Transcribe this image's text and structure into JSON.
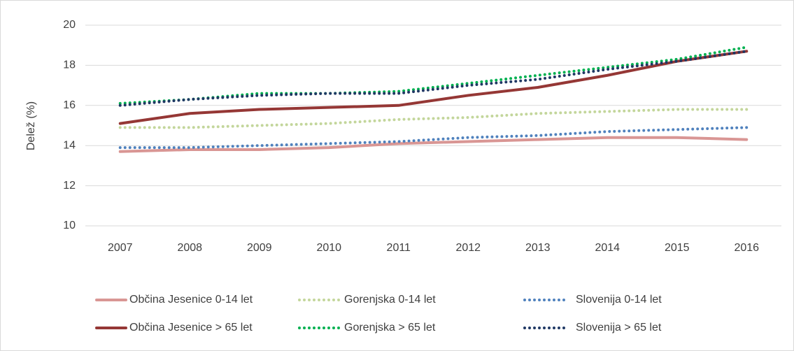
{
  "chart_data": {
    "type": "line",
    "y_label": "Delež (%)",
    "categories": [
      "2007",
      "2008",
      "2009",
      "2010",
      "2011",
      "2012",
      "2013",
      "2014",
      "2015",
      "2016"
    ],
    "series": [
      {
        "name": "Občina Jesenice 0-14 let",
        "color": "#d99694",
        "style": "solid",
        "values": [
          13.7,
          13.8,
          13.8,
          13.9,
          14.1,
          14.2,
          14.3,
          14.4,
          14.4,
          14.3
        ]
      },
      {
        "name": "Gorenjska 0-14 let",
        "color": "#c3d69b",
        "style": "dotted",
        "values": [
          14.9,
          14.9,
          15.0,
          15.1,
          15.3,
          15.4,
          15.6,
          15.7,
          15.8,
          15.8
        ]
      },
      {
        "name": "Slovenija 0-14 let",
        "color": "#4f81bd",
        "style": "dotted",
        "values": [
          13.9,
          13.9,
          14.0,
          14.1,
          14.2,
          14.4,
          14.5,
          14.7,
          14.8,
          14.9
        ]
      },
      {
        "name": "Občina Jesenice > 65 let",
        "color": "#953735",
        "style": "solid",
        "values": [
          15.1,
          15.6,
          15.8,
          15.9,
          16.0,
          16.5,
          16.9,
          17.5,
          18.2,
          18.7
        ]
      },
      {
        "name": "Gorenjska > 65 let",
        "color": "#00b050",
        "style": "dotted",
        "values": [
          16.1,
          16.3,
          16.6,
          16.6,
          16.7,
          17.1,
          17.5,
          17.9,
          18.3,
          18.9
        ]
      },
      {
        "name": "Slovenija > 65 let",
        "color": "#1f3864",
        "style": "dotted",
        "values": [
          16.0,
          16.3,
          16.5,
          16.6,
          16.6,
          17.0,
          17.3,
          17.8,
          18.2,
          18.7
        ]
      }
    ],
    "ylim": [
      10,
      20
    ],
    "yticks": [
      10,
      12,
      14,
      16,
      18,
      20
    ],
    "grid": true,
    "legend": "bottom"
  }
}
